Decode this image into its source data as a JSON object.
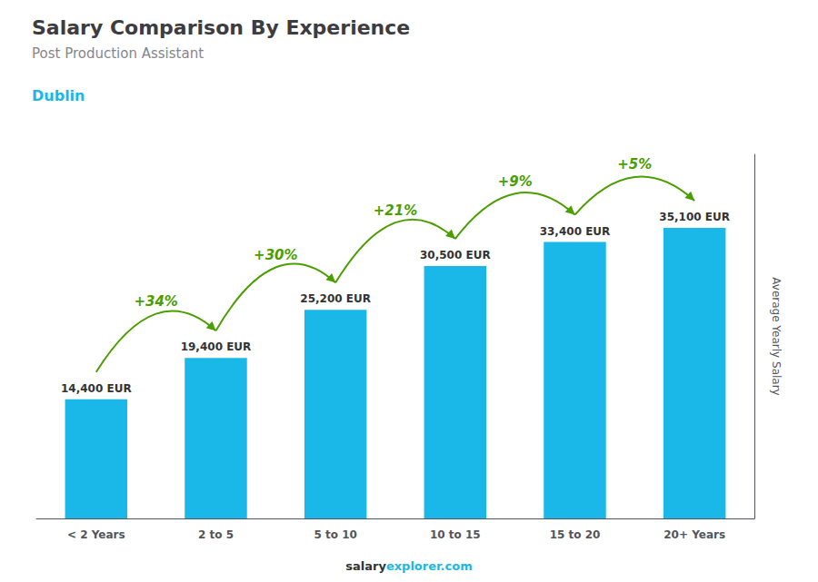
{
  "chart_data": {
    "type": "bar",
    "title": "Salary Comparison By Experience",
    "subtitle": "Post Production Assistant",
    "city": "Dublin",
    "ylabel": "Average Yearly Salary",
    "watermark": [
      "salary",
      "explorer.com"
    ],
    "categories": [
      "< 2 Years",
      "2 to 5",
      "5 to 10",
      "10 to 15",
      "15 to 20",
      "20+ Years"
    ],
    "values": [
      14400,
      19400,
      25200,
      30500,
      33400,
      35100
    ],
    "value_labels": [
      "14,400 EUR",
      "19,400 EUR",
      "25,200 EUR",
      "30,500 EUR",
      "33,400 EUR",
      "35,100 EUR"
    ],
    "data_labels": true,
    "annotations": [
      {
        "text": "+34%",
        "from": "< 2 Years",
        "to": "2 to 5"
      },
      {
        "text": "+30%",
        "from": "2 to 5",
        "to": "5 to 10"
      },
      {
        "text": "+21%",
        "from": "5 to 10",
        "to": "10 to 15"
      },
      {
        "text": "+9%",
        "from": "10 to 15",
        "to": "15 to 20"
      },
      {
        "text": "+5%",
        "from": "15 to 20",
        "to": "20+ Years"
      }
    ],
    "color": "#1ab8e8",
    "ylim": [
      0,
      44000
    ],
    "tick_labels": "x",
    "grid": false
  }
}
